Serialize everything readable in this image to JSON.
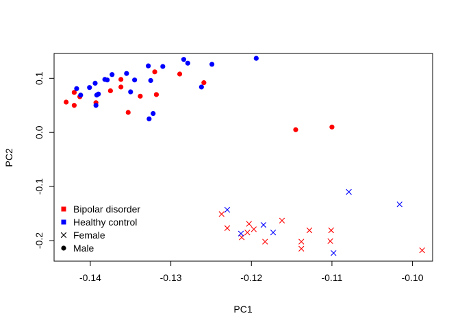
{
  "chart_data": {
    "type": "scatter",
    "xlabel": "PC1",
    "ylabel": "PC2",
    "xlim": [
      -0.1445,
      -0.0975
    ],
    "ylim": [
      -0.238,
      0.146
    ],
    "x_ticks": [
      {
        "value": -0.14,
        "label": "-0.14"
      },
      {
        "value": -0.13,
        "label": "-0.13"
      },
      {
        "value": -0.12,
        "label": "-0.12"
      },
      {
        "value": -0.11,
        "label": "-0.11"
      },
      {
        "value": -0.1,
        "label": "-0.10"
      }
    ],
    "y_ticks": [
      {
        "value": 0.1,
        "label": "0.1"
      },
      {
        "value": 0.0,
        "label": "0.0"
      },
      {
        "value": -0.1,
        "label": "-0.1"
      },
      {
        "value": -0.2,
        "label": "-0.2"
      }
    ],
    "grid": false,
    "legend_position": "bottom-left",
    "legend": [
      {
        "label": "Bipolar disorder",
        "color": "#ff0000",
        "marker": "square"
      },
      {
        "label": "Healthy control",
        "color": "#0000ff",
        "marker": "square"
      },
      {
        "label": "Female",
        "color": "#000000",
        "marker": "cross"
      },
      {
        "label": "Male",
        "color": "#000000",
        "marker": "dot"
      }
    ],
    "series": [
      {
        "group": "Bipolar disorder",
        "sex": "Male",
        "color": "#ff0000",
        "marker": "dot",
        "points": [
          [
            -0.143,
            0.056
          ],
          [
            -0.142,
            0.074
          ],
          [
            -0.142,
            0.05
          ],
          [
            -0.1413,
            0.066
          ],
          [
            -0.1393,
            0.055
          ],
          [
            -0.1375,
            0.077
          ],
          [
            -0.1362,
            0.098
          ],
          [
            -0.1362,
            0.084
          ],
          [
            -0.1353,
            0.037
          ],
          [
            -0.1338,
            0.067
          ],
          [
            -0.132,
            0.112
          ],
          [
            -0.1318,
            0.07
          ],
          [
            -0.1289,
            0.108
          ],
          [
            -0.1259,
            0.092
          ],
          [
            -0.1145,
            0.005
          ],
          [
            -0.11,
            0.01
          ]
        ]
      },
      {
        "group": "Healthy control",
        "sex": "Male",
        "color": "#0000ff",
        "marker": "dot",
        "points": [
          [
            -0.1417,
            0.081
          ],
          [
            -0.1412,
            0.069
          ],
          [
            -0.1401,
            0.083
          ],
          [
            -0.1394,
            0.091
          ],
          [
            -0.1393,
            0.05
          ],
          [
            -0.1392,
            0.069
          ],
          [
            -0.139,
            0.071
          ],
          [
            -0.1382,
            0.098
          ],
          [
            -0.1379,
            0.097
          ],
          [
            -0.1373,
            0.107
          ],
          [
            -0.1355,
            0.109
          ],
          [
            -0.135,
            0.075
          ],
          [
            -0.1345,
            0.097
          ],
          [
            -0.1328,
            0.123
          ],
          [
            -0.1327,
            0.025
          ],
          [
            -0.1325,
            0.096
          ],
          [
            -0.1322,
            0.035
          ],
          [
            -0.131,
            0.122
          ],
          [
            -0.1284,
            0.135
          ],
          [
            -0.1279,
            0.128
          ],
          [
            -0.1262,
            0.084
          ],
          [
            -0.1249,
            0.126
          ],
          [
            -0.1194,
            0.137
          ]
        ]
      },
      {
        "group": "Bipolar disorder",
        "sex": "Female",
        "color": "#ff0000",
        "marker": "cross",
        "points": [
          [
            -0.1237,
            -0.151
          ],
          [
            -0.123,
            -0.177
          ],
          [
            -0.1212,
            -0.194
          ],
          [
            -0.1205,
            -0.185
          ],
          [
            -0.1203,
            -0.169
          ],
          [
            -0.1197,
            -0.179
          ],
          [
            -0.1183,
            -0.202
          ],
          [
            -0.1162,
            -0.163
          ],
          [
            -0.1138,
            -0.202
          ],
          [
            -0.1138,
            -0.215
          ],
          [
            -0.1128,
            -0.181
          ],
          [
            -0.1102,
            -0.201
          ],
          [
            -0.1101,
            -0.181
          ],
          [
            -0.0988,
            -0.218
          ]
        ]
      },
      {
        "group": "Healthy control",
        "sex": "Female",
        "color": "#0000ff",
        "marker": "cross",
        "points": [
          [
            -0.123,
            -0.143
          ],
          [
            -0.1213,
            -0.187
          ],
          [
            -0.1185,
            -0.171
          ],
          [
            -0.1173,
            -0.185
          ],
          [
            -0.1098,
            -0.223
          ],
          [
            -0.1079,
            -0.11
          ],
          [
            -0.1016,
            -0.133
          ]
        ]
      }
    ]
  }
}
